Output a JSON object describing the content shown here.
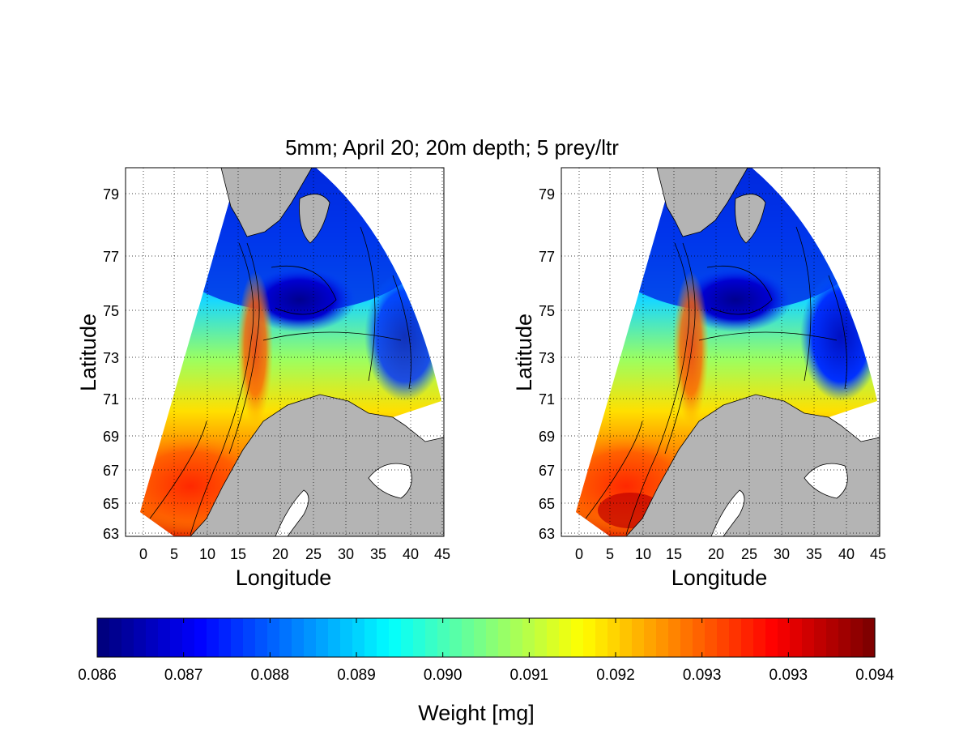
{
  "figure": {
    "title": "5mm; April 20; 20m depth; 5 prey/ltr"
  },
  "panels": [
    {
      "name": "left",
      "xlabel": "Longitude",
      "ylabel": "Latitude",
      "xticks": [
        "0",
        "5",
        "10",
        "15",
        "20",
        "25",
        "30",
        "35",
        "40",
        "45"
      ],
      "yticks": [
        "79",
        "77",
        "75",
        "73",
        "71",
        "69",
        "67",
        "65",
        "63"
      ]
    },
    {
      "name": "right",
      "xlabel": "Longitude",
      "ylabel": "Latitude",
      "xticks": [
        "0",
        "5",
        "10",
        "15",
        "20",
        "25",
        "30",
        "35",
        "40",
        "45"
      ],
      "yticks": [
        "79",
        "77",
        "75",
        "73",
        "71",
        "69",
        "67",
        "65",
        "63"
      ]
    }
  ],
  "colorbar": {
    "label": "Weight [mg]",
    "ticks": [
      "0.086",
      "0.087",
      "0.088",
      "0.089",
      "0.090",
      "0.091",
      "0.092",
      "0.093",
      "0.093",
      "0.094"
    ],
    "colormap": "jet",
    "steps": 64
  },
  "colors": {
    "land": "#b4b4b4",
    "frame": "#000000",
    "grid": "#000000"
  }
}
